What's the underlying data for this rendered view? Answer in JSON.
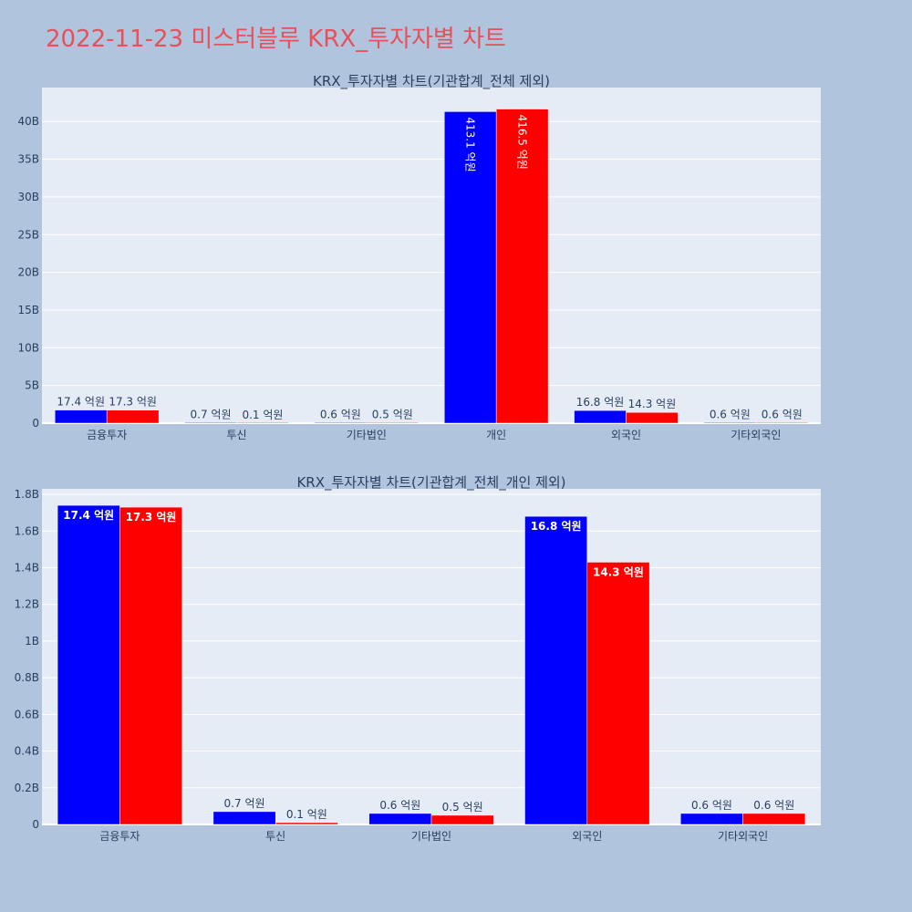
{
  "page_title": "2022-11-23 미스터블루 KRX_투자자별 차트",
  "colors": {
    "page_background": "#b0c4de",
    "plot_background": "#e5ecf6",
    "grid": "#ffffff",
    "title": "#e8505b",
    "series_1": "#0000ff",
    "series_2": "#ff0000",
    "text": "#2a3f5f"
  },
  "chart_data": [
    {
      "type": "bar",
      "title": "KRX_투자자별 차트(기관합계_전체 제외)",
      "categories": [
        "금융투자",
        "투신",
        "기타법인",
        "개인",
        "외국인",
        "기타외국인"
      ],
      "series": [
        {
          "values": [
            1740000000,
            70000000,
            60000000,
            41310000000,
            1680000000,
            60000000
          ],
          "labels": [
            "17.4 억원",
            "0.7 억원",
            "0.6 억원",
            "413.1 억원",
            "16.8 억원",
            "0.6 억원"
          ],
          "color": "#0000ff"
        },
        {
          "values": [
            1730000000,
            10000000,
            50000000,
            41650000000,
            1430000000,
            60000000
          ],
          "labels": [
            "17.3 억원",
            "0.1 억원",
            "0.5 억원",
            "416.5 억원",
            "14.3 억원",
            "0.6 억원"
          ],
          "color": "#ff0000"
        }
      ],
      "ylim": [
        0,
        44500000000
      ],
      "yticks": [
        0,
        5000000000,
        10000000000,
        15000000000,
        20000000000,
        25000000000,
        30000000000,
        35000000000,
        40000000000
      ],
      "ytick_labels": [
        "0",
        "5B",
        "10B",
        "15B",
        "20B",
        "25B",
        "30B",
        "35B",
        "40B"
      ],
      "grid": true,
      "legend": "none"
    },
    {
      "type": "bar",
      "title": "KRX_투자자별 차트(기관합계_전체_개인 제외)",
      "categories": [
        "금융투자",
        "투신",
        "기타법인",
        "외국인",
        "기타외국인"
      ],
      "series": [
        {
          "values": [
            1740000000,
            70000000,
            60000000,
            1680000000,
            60000000
          ],
          "labels": [
            "17.4 억원",
            "0.7 억원",
            "0.6 억원",
            "16.8 억원",
            "0.6 억원"
          ],
          "color": "#0000ff"
        },
        {
          "values": [
            1730000000,
            10000000,
            50000000,
            1430000000,
            60000000
          ],
          "labels": [
            "17.3 억원",
            "0.1 억원",
            "0.5 억원",
            "14.3 억원",
            "0.6 억원"
          ],
          "color": "#ff0000"
        }
      ],
      "ylim": [
        0,
        1830000000
      ],
      "yticks": [
        0,
        200000000,
        400000000,
        600000000,
        800000000,
        1000000000,
        1200000000,
        1400000000,
        1600000000,
        1800000000
      ],
      "ytick_labels": [
        "0",
        "0.2B",
        "0.4B",
        "0.6B",
        "0.8B",
        "1B",
        "1.2B",
        "1.4B",
        "1.6B",
        "1.8B"
      ],
      "grid": true,
      "legend": "none"
    }
  ]
}
